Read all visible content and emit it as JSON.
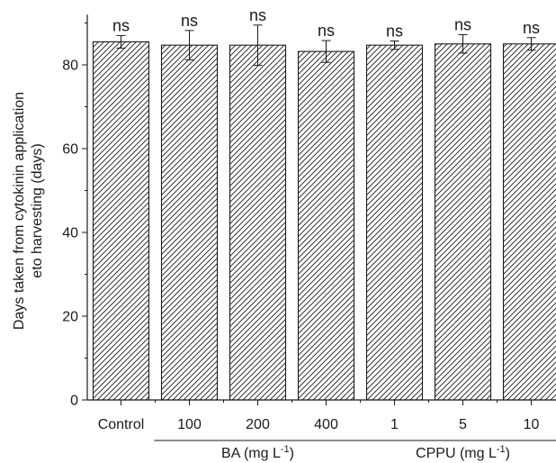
{
  "chart_data": {
    "type": "bar",
    "categories": [
      "Control",
      "100",
      "200",
      "400",
      "1",
      "5",
      "10"
    ],
    "values": [
      85.5,
      84.7,
      84.7,
      83.2,
      84.7,
      85.0,
      85.0
    ],
    "errors": [
      1.5,
      3.5,
      4.8,
      2.6,
      1.0,
      2.2,
      1.5
    ],
    "annotations": [
      "ns",
      "ns",
      "ns",
      "ns",
      "ns",
      "ns",
      "ns"
    ],
    "ylabel_line1": "Days taken from cytokinin application",
    "ylabel_line2": "eto harvesting (days)",
    "xlabel": "",
    "ylim": [
      0,
      92
    ],
    "yticks": [
      0,
      20,
      40,
      60,
      80
    ],
    "groups": [
      {
        "label_prefix": "BA (mg L",
        "label_sup": "-1",
        "label_suffix": ")",
        "first": 1,
        "last": 3
      },
      {
        "label_prefix": "CPPU (mg L",
        "label_sup": "-1",
        "label_suffix": ")",
        "first": 4,
        "last": 6
      }
    ],
    "pattern": "diagonal-hatch",
    "bar_fill": "#ffffff",
    "bar_stroke": "#1a1a1a",
    "grid": false
  }
}
